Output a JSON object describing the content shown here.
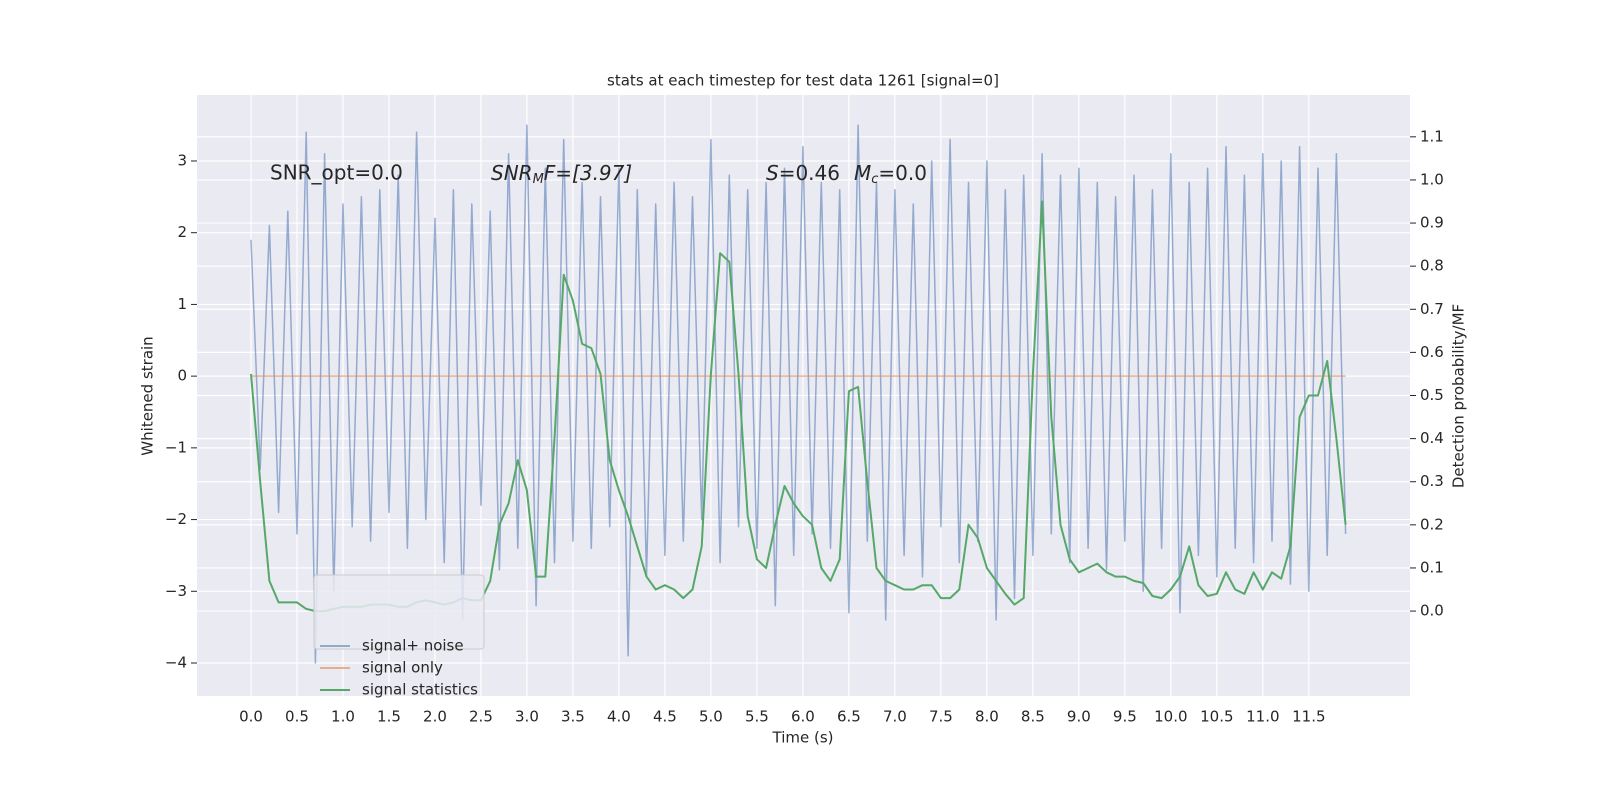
{
  "chart_data": {
    "type": "line",
    "title": "stats at each timestep for test data 1261 [signal=0]",
    "xlabel": "Time (s)",
    "ylabel": "Whitened strain",
    "y2label": "Detection probability/MF",
    "x": [
      0.0,
      0.1,
      0.2,
      0.3,
      0.4,
      0.5,
      0.6,
      0.7,
      0.8,
      0.9,
      1.0,
      1.1,
      1.2,
      1.3,
      1.4,
      1.5,
      1.6,
      1.7,
      1.8,
      1.9,
      2.0,
      2.1,
      2.2,
      2.3,
      2.4,
      2.5,
      2.6,
      2.7,
      2.8,
      2.9,
      3.0,
      3.1,
      3.2,
      3.3,
      3.4,
      3.5,
      3.6,
      3.7,
      3.8,
      3.9,
      4.0,
      4.1,
      4.2,
      4.3,
      4.4,
      4.5,
      4.6,
      4.7,
      4.8,
      4.9,
      5.0,
      5.1,
      5.2,
      5.3,
      5.4,
      5.5,
      5.6,
      5.7,
      5.8,
      5.9,
      6.0,
      6.1,
      6.2,
      6.3,
      6.4,
      6.5,
      6.6,
      6.7,
      6.8,
      6.9,
      7.0,
      7.1,
      7.2,
      7.3,
      7.4,
      7.5,
      7.6,
      7.7,
      7.8,
      7.9,
      8.0,
      8.1,
      8.2,
      8.3,
      8.4,
      8.5,
      8.6,
      8.7,
      8.8,
      8.9,
      9.0,
      9.1,
      9.2,
      9.3,
      9.4,
      9.5,
      9.6,
      9.7,
      9.8,
      9.9,
      10.0,
      10.1,
      10.2,
      10.3,
      10.4,
      10.5,
      10.6,
      10.7,
      10.8,
      10.9,
      11.0,
      11.1,
      11.2,
      11.3,
      11.4,
      11.5,
      11.6,
      11.7,
      11.8,
      11.9
    ],
    "series": [
      {
        "name": "signal+ noise",
        "color": "#4c72b0",
        "alpha": 0.55,
        "values": [
          1.9,
          -1.3,
          2.1,
          -1.9,
          2.3,
          -2.2,
          3.4,
          -4.0,
          3.1,
          -3.0,
          2.4,
          -2.1,
          2.5,
          -2.3,
          2.6,
          -1.9,
          2.8,
          -2.4,
          3.4,
          -2.0,
          2.2,
          -2.6,
          2.6,
          -3.4,
          2.4,
          -1.8,
          2.3,
          -2.7,
          3.1,
          -2.4,
          3.5,
          -3.2,
          2.9,
          -2.6,
          3.3,
          -2.3,
          2.7,
          -2.4,
          2.5,
          -2.1,
          2.9,
          -3.9,
          2.6,
          -2.8,
          2.4,
          -2.5,
          2.7,
          -2.3,
          2.5,
          -2.0,
          3.3,
          -2.6,
          2.8,
          -2.1,
          2.6,
          -2.4,
          2.7,
          -3.2,
          2.9,
          -2.5,
          3.2,
          -2.2,
          2.7,
          -2.4,
          2.6,
          -3.3,
          3.5,
          -2.3,
          2.7,
          -3.4,
          2.6,
          -2.5,
          2.4,
          -2.8,
          3.0,
          -2.1,
          3.3,
          -2.6,
          2.7,
          -2.3,
          3.0,
          -3.4,
          2.6,
          -3.1,
          2.8,
          -2.5,
          3.1,
          -2.2,
          2.8,
          -2.6,
          2.9,
          -2.4,
          2.7,
          -2.7,
          2.5,
          -2.3,
          2.8,
          -3.0,
          2.6,
          -2.4,
          3.1,
          -3.3,
          2.7,
          -2.5,
          2.9,
          -2.8,
          3.2,
          -2.4,
          2.8,
          -2.6,
          3.1,
          -2.3,
          3.0,
          -2.9,
          3.2,
          -3.0,
          2.9,
          -2.5,
          3.1,
          -2.2
        ]
      },
      {
        "name": "signal only",
        "color": "#dd8452",
        "alpha": 0.6,
        "values": [
          0,
          0,
          0,
          0,
          0,
          0,
          0,
          0,
          0,
          0,
          0,
          0,
          0,
          0,
          0,
          0,
          0,
          0,
          0,
          0,
          0,
          0,
          0,
          0,
          0,
          0,
          0,
          0,
          0,
          0,
          0,
          0,
          0,
          0,
          0,
          0,
          0,
          0,
          0,
          0,
          0,
          0,
          0,
          0,
          0,
          0,
          0,
          0,
          0,
          0,
          0,
          0,
          0,
          0,
          0,
          0,
          0,
          0,
          0,
          0,
          0,
          0,
          0,
          0,
          0,
          0,
          0,
          0,
          0,
          0,
          0,
          0,
          0,
          0,
          0,
          0,
          0,
          0,
          0,
          0,
          0,
          0,
          0,
          0,
          0,
          0,
          0,
          0,
          0,
          0,
          0,
          0,
          0,
          0,
          0,
          0,
          0,
          0,
          0,
          0,
          0,
          0,
          0,
          0,
          0,
          0,
          0,
          0,
          0,
          0,
          0,
          0,
          0,
          0,
          0,
          0,
          0,
          0,
          0,
          0
        ]
      },
      {
        "name": "signal statistics",
        "color": "#55a868",
        "alpha": 1,
        "axis": "y2",
        "values": [
          0.55,
          0.3,
          0.07,
          0.02,
          0.02,
          0.02,
          0.005,
          0.0,
          0.0,
          0.005,
          0.01,
          0.01,
          0.01,
          0.015,
          0.015,
          0.015,
          0.01,
          0.01,
          0.02,
          0.025,
          0.02,
          0.015,
          0.02,
          0.03,
          0.025,
          0.025,
          0.07,
          0.2,
          0.25,
          0.35,
          0.28,
          0.08,
          0.08,
          0.4,
          0.78,
          0.72,
          0.62,
          0.61,
          0.55,
          0.35,
          0.28,
          0.22,
          0.15,
          0.08,
          0.05,
          0.06,
          0.05,
          0.03,
          0.05,
          0.15,
          0.55,
          0.83,
          0.81,
          0.55,
          0.22,
          0.12,
          0.1,
          0.2,
          0.29,
          0.25,
          0.22,
          0.2,
          0.1,
          0.07,
          0.12,
          0.51,
          0.52,
          0.3,
          0.1,
          0.07,
          0.06,
          0.05,
          0.05,
          0.06,
          0.06,
          0.03,
          0.03,
          0.05,
          0.2,
          0.17,
          0.1,
          0.07,
          0.04,
          0.015,
          0.03,
          0.55,
          0.95,
          0.45,
          0.2,
          0.12,
          0.09,
          0.1,
          0.11,
          0.09,
          0.08,
          0.08,
          0.07,
          0.065,
          0.035,
          0.03,
          0.05,
          0.08,
          0.15,
          0.06,
          0.035,
          0.04,
          0.09,
          0.05,
          0.04,
          0.09,
          0.05,
          0.09,
          0.075,
          0.15,
          0.45,
          0.5,
          0.5,
          0.58,
          0.4,
          0.2
        ]
      }
    ],
    "xlim": [
      -0.587,
      12.6
    ],
    "ylim": [
      -4.46,
      3.92
    ],
    "y2lim": [
      -0.197,
      1.197
    ],
    "xticks": [
      {
        "value": 0,
        "label": "0.0"
      },
      0.5,
      {
        "value": 1,
        "label": "1.0"
      },
      1.5,
      {
        "value": 2,
        "label": "2.0"
      },
      2.5,
      {
        "value": 3,
        "label": "3.0"
      },
      3.5,
      {
        "value": 4,
        "label": "4.0"
      },
      4.5,
      {
        "value": 5,
        "label": "5.0"
      },
      5.5,
      {
        "value": 6,
        "label": "6.0"
      },
      6.5,
      {
        "value": 7,
        "label": "7.0"
      },
      7.5,
      {
        "value": 8,
        "label": "8.0"
      },
      8.5,
      {
        "value": 9,
        "label": "9.0"
      },
      9.5,
      {
        "value": 10,
        "label": "10.0"
      },
      10.5,
      {
        "value": 11,
        "label": "11.0"
      },
      11.5
    ],
    "yticks": [
      {
        "value": -4,
        "label": "−4"
      },
      {
        "value": -3,
        "label": "−3"
      },
      {
        "value": -2,
        "label": "−2"
      },
      {
        "value": -1,
        "label": "−1"
      },
      0,
      1,
      2,
      3
    ],
    "y2ticks": [
      {
        "value": 0,
        "label": "0.0"
      },
      0.1,
      0.2,
      0.3,
      0.4,
      0.5,
      0.6,
      0.7,
      0.8,
      0.9,
      {
        "value": 1,
        "label": "1.0"
      },
      1.1
    ],
    "grid": true,
    "legend": "lower left",
    "annotations": [
      "SNR_opt=0.0",
      [
        "SNR",
        "M",
        "F=[3.97]"
      ],
      [
        "S",
        "=0.46",
        "M",
        "c",
        "=0.0"
      ]
    ]
  }
}
